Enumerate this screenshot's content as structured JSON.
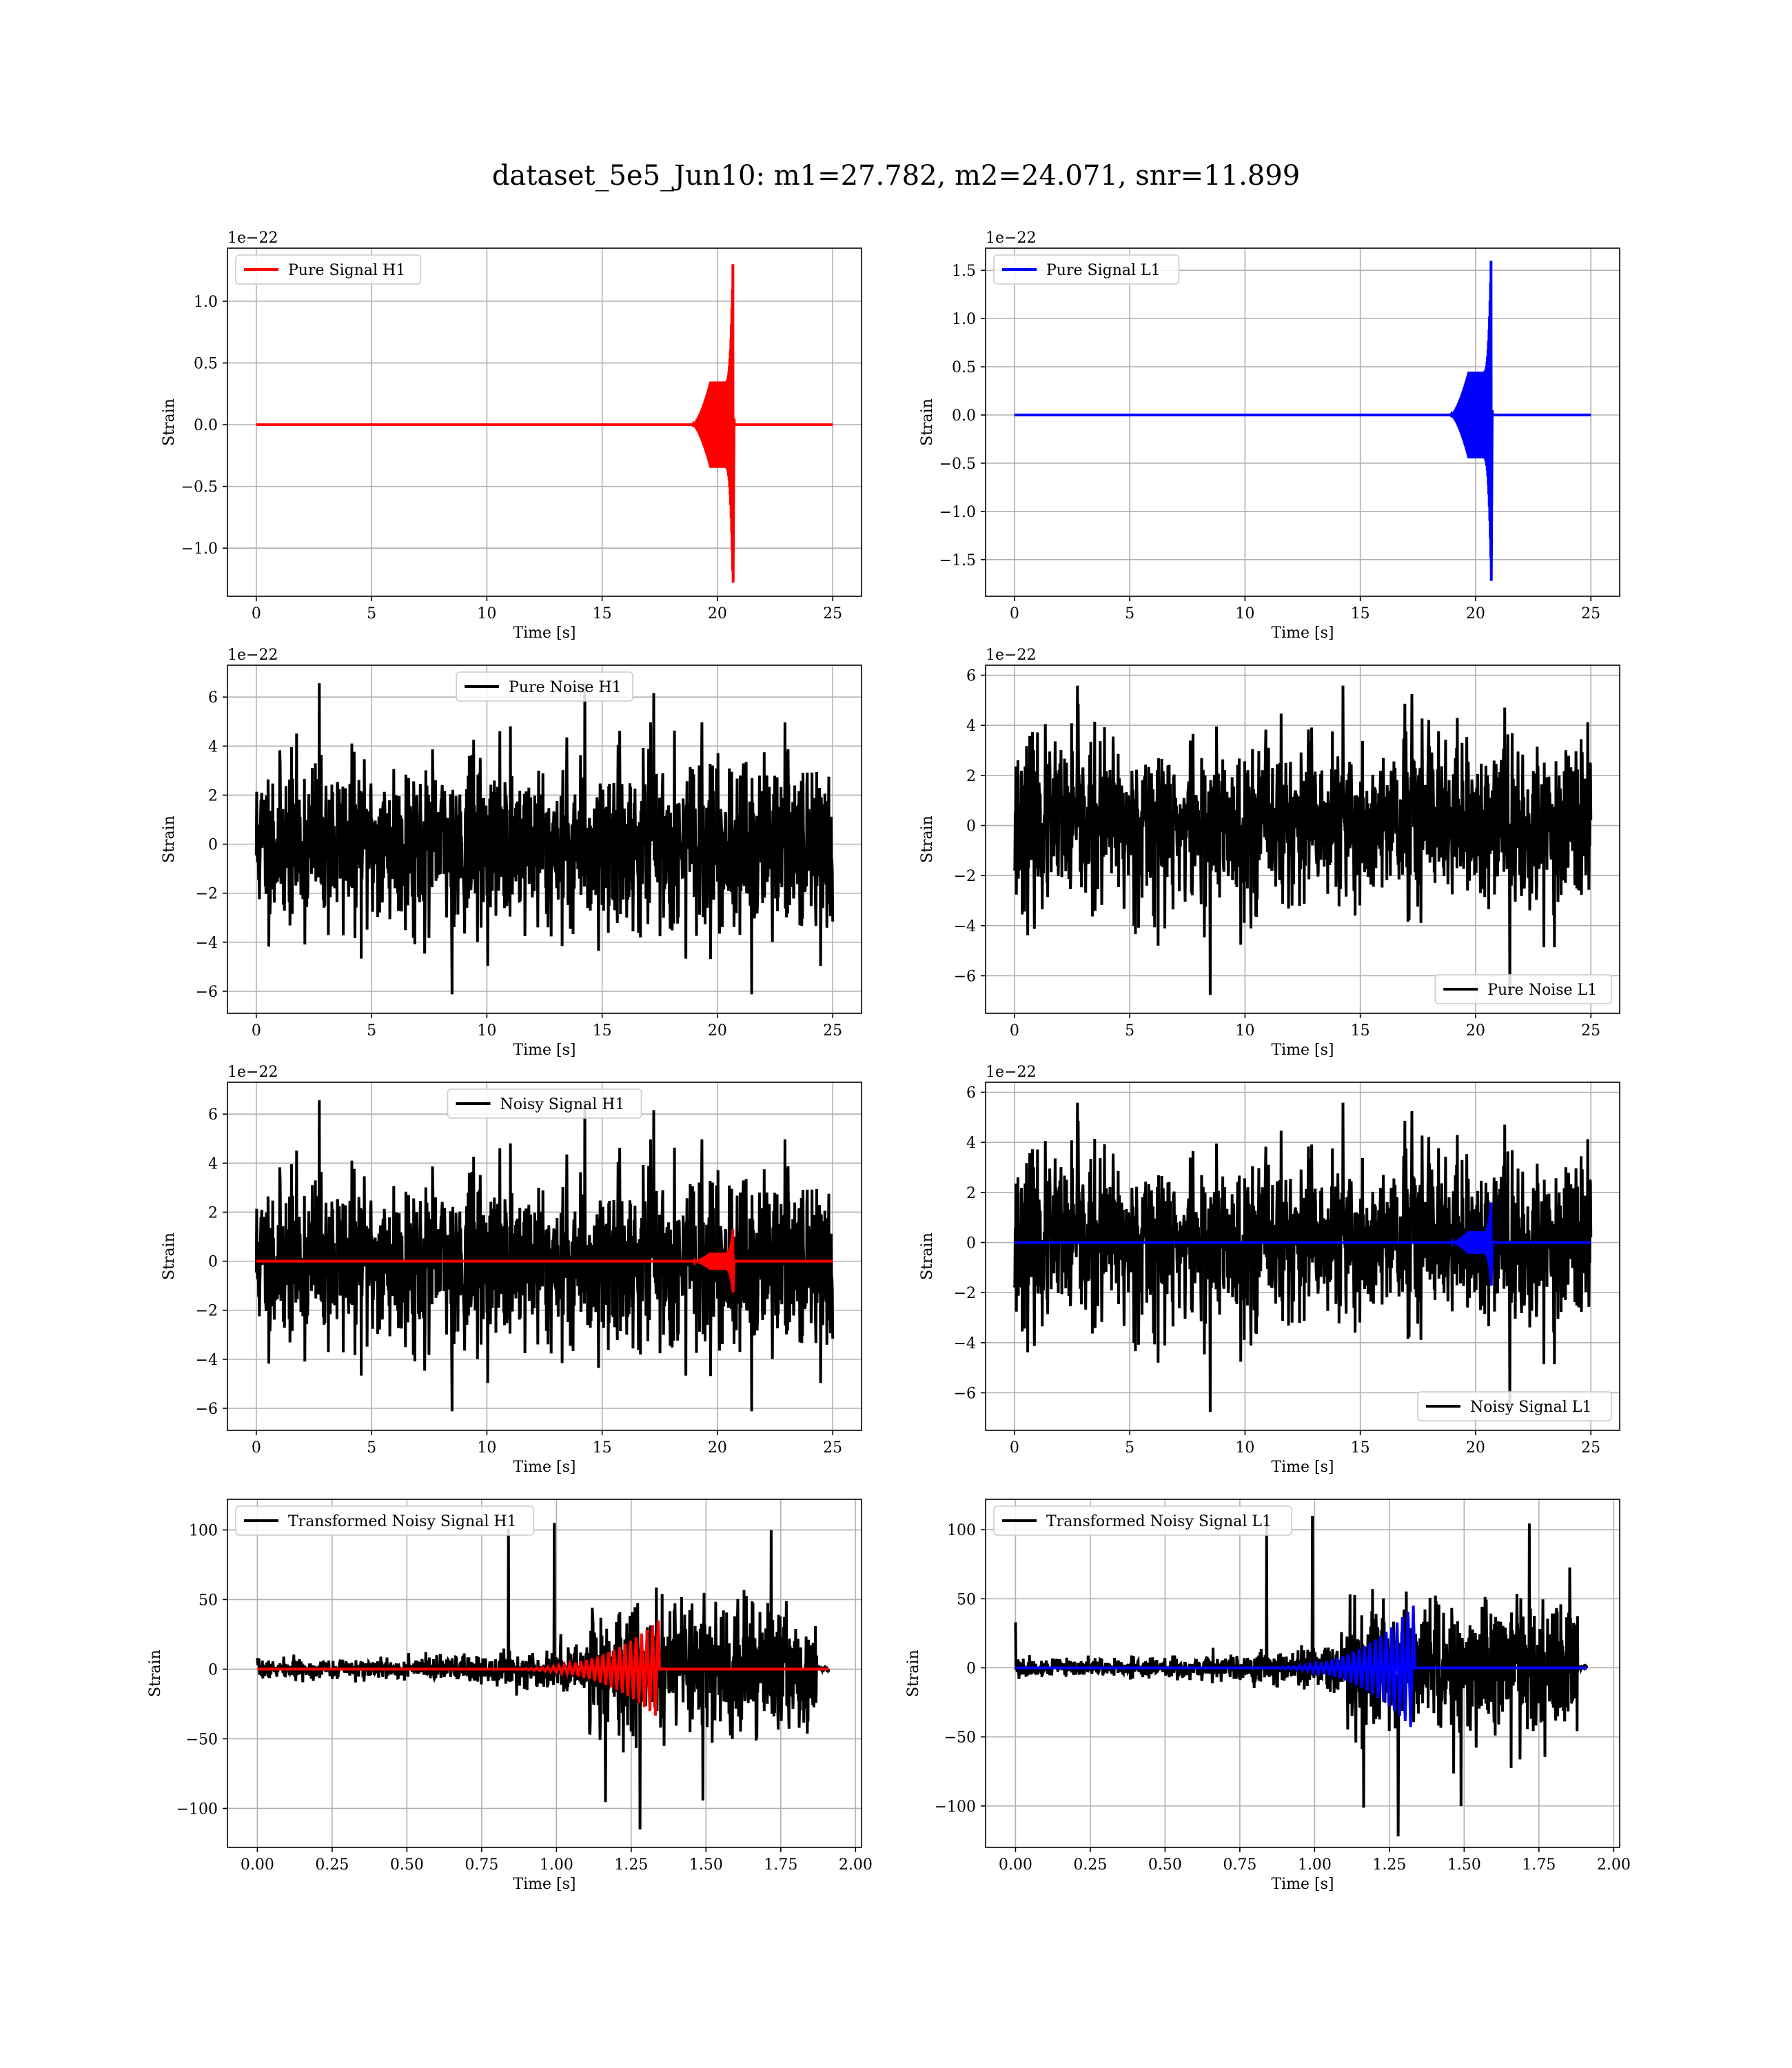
{
  "figure": {
    "title": "dataset_5e5_Jun10: m1=27.782, m2=24.071, snr=11.899"
  },
  "chart_data": [
    {
      "id": "pure-signal-h1",
      "type": "line",
      "xlabel": "Time [s]",
      "ylabel": "Strain",
      "offset_text": "1e−22",
      "xlim": [
        -1.25,
        26.25
      ],
      "ylim": [
        -1.39,
        1.43
      ],
      "xticks": [
        0,
        5,
        10,
        15,
        20,
        25
      ],
      "yticks": [
        -1.0,
        -0.5,
        0.0,
        0.5,
        1.0
      ],
      "ytick_labels": [
        "−1.0",
        "−0.5",
        "0.0",
        "0.5",
        "1.0"
      ],
      "grid": true,
      "legend": {
        "location": "upper left"
      },
      "series": [
        {
          "name": "Pure Signal H1",
          "color": "#ff0000",
          "kind": "chirp",
          "x_range": [
            0,
            25
          ],
          "start_t": 18.9,
          "peak_t": 20.67,
          "end_t": 20.72,
          "plateau_amp": 0.35,
          "peak_pos": 1.3,
          "peak_neg": -1.28
        }
      ]
    },
    {
      "id": "pure-signal-l1",
      "type": "line",
      "xlabel": "Time [s]",
      "ylabel": "Strain",
      "offset_text": "1e−22",
      "xlim": [
        -1.25,
        26.25
      ],
      "ylim": [
        -1.88,
        1.73
      ],
      "xticks": [
        0,
        5,
        10,
        15,
        20,
        25
      ],
      "yticks": [
        -1.5,
        -1.0,
        -0.5,
        0.0,
        0.5,
        1.0,
        1.5
      ],
      "ytick_labels": [
        "−1.5",
        "−1.0",
        "−0.5",
        "0.0",
        "0.5",
        "1.0",
        "1.5"
      ],
      "grid": true,
      "legend": {
        "location": "upper left"
      },
      "series": [
        {
          "name": "Pure Signal L1",
          "color": "#0000ff",
          "kind": "chirp",
          "x_range": [
            0,
            25
          ],
          "start_t": 18.9,
          "peak_t": 20.67,
          "end_t": 20.72,
          "plateau_amp": 0.45,
          "peak_pos": 1.6,
          "peak_neg": -1.72
        }
      ]
    },
    {
      "id": "pure-noise-h1",
      "type": "line",
      "xlabel": "Time [s]",
      "ylabel": "Strain",
      "offset_text": "1e−22",
      "xlim": [
        -1.25,
        26.25
      ],
      "ylim": [
        -6.9,
        7.3
      ],
      "xticks": [
        0,
        5,
        10,
        15,
        20,
        25
      ],
      "yticks": [
        -6,
        -4,
        -2,
        0,
        2,
        4,
        6
      ],
      "ytick_labels": [
        "−6",
        "−4",
        "−2",
        "0",
        "2",
        "4",
        "6"
      ],
      "grid": true,
      "legend": {
        "location": "upper center"
      },
      "series": [
        {
          "name": "Pure Noise H1",
          "color": "#000000",
          "kind": "noise",
          "x_range": [
            0,
            25
          ],
          "envelope": 4.6,
          "max": 6.7,
          "min": -6.25,
          "seed": 11
        }
      ]
    },
    {
      "id": "pure-noise-l1",
      "type": "line",
      "xlabel": "Time [s]",
      "ylabel": "Strain",
      "offset_text": "1e−22",
      "xlim": [
        -1.25,
        26.25
      ],
      "ylim": [
        -7.5,
        6.4
      ],
      "xticks": [
        0,
        5,
        10,
        15,
        20,
        25
      ],
      "yticks": [
        -6,
        -4,
        -2,
        0,
        2,
        4,
        6
      ],
      "ytick_labels": [
        "−6",
        "−4",
        "−2",
        "0",
        "2",
        "4",
        "6"
      ],
      "grid": true,
      "legend": {
        "location": "lower right"
      },
      "series": [
        {
          "name": "Pure Noise L1",
          "color": "#000000",
          "kind": "noise",
          "x_range": [
            0,
            25
          ],
          "envelope": 4.5,
          "max": 5.7,
          "min": -6.9,
          "seed": 23
        }
      ]
    },
    {
      "id": "noisy-signal-h1",
      "type": "line",
      "xlabel": "Time [s]",
      "ylabel": "Strain",
      "offset_text": "1e−22",
      "xlim": [
        -1.25,
        26.25
      ],
      "ylim": [
        -6.9,
        7.3
      ],
      "xticks": [
        0,
        5,
        10,
        15,
        20,
        25
      ],
      "yticks": [
        -6,
        -4,
        -2,
        0,
        2,
        4,
        6
      ],
      "ytick_labels": [
        "−6",
        "−4",
        "−2",
        "0",
        "2",
        "4",
        "6"
      ],
      "grid": true,
      "legend": {
        "location": "upper center"
      },
      "series": [
        {
          "name": "Noisy Signal H1",
          "color": "#000000",
          "kind": "noise",
          "x_range": [
            0,
            25
          ],
          "envelope": 4.6,
          "max": 6.7,
          "min": -6.25,
          "seed": 11
        },
        {
          "name": "",
          "color": "#ff0000",
          "kind": "chirp",
          "x_range": [
            0,
            25
          ],
          "start_t": 18.9,
          "peak_t": 20.67,
          "end_t": 20.72,
          "plateau_amp": 0.35,
          "peak_pos": 1.3,
          "peak_neg": -1.28
        }
      ]
    },
    {
      "id": "noisy-signal-l1",
      "type": "line",
      "xlabel": "Time [s]",
      "ylabel": "Strain",
      "offset_text": "1e−22",
      "xlim": [
        -1.25,
        26.25
      ],
      "ylim": [
        -7.5,
        6.4
      ],
      "xticks": [
        0,
        5,
        10,
        15,
        20,
        25
      ],
      "yticks": [
        -6,
        -4,
        -2,
        0,
        2,
        4,
        6
      ],
      "ytick_labels": [
        "−6",
        "−4",
        "−2",
        "0",
        "2",
        "4",
        "6"
      ],
      "grid": true,
      "legend": {
        "location": "lower right"
      },
      "series": [
        {
          "name": "Noisy Signal L1",
          "color": "#000000",
          "kind": "noise",
          "x_range": [
            0,
            25
          ],
          "envelope": 4.5,
          "max": 5.7,
          "min": -6.9,
          "seed": 23
        },
        {
          "name": "",
          "color": "#0000ff",
          "kind": "chirp",
          "x_range": [
            0,
            25
          ],
          "start_t": 18.9,
          "peak_t": 20.67,
          "end_t": 20.72,
          "plateau_amp": 0.45,
          "peak_pos": 1.6,
          "peak_neg": -1.72
        }
      ]
    },
    {
      "id": "transformed-noisy-signal-h1",
      "type": "line",
      "xlabel": "Time [s]",
      "ylabel": "Strain",
      "offset_text": "",
      "xlim": [
        -0.1,
        2.02
      ],
      "ylim": [
        -128,
        122
      ],
      "xticks": [
        0.0,
        0.25,
        0.5,
        0.75,
        1.0,
        1.25,
        1.5,
        1.75,
        2.0
      ],
      "xtick_labels": [
        "0.00",
        "0.25",
        "0.50",
        "0.75",
        "1.00",
        "1.25",
        "1.50",
        "1.75",
        "2.00"
      ],
      "yticks": [
        -100,
        -50,
        0,
        50,
        100
      ],
      "ytick_labels": [
        "−100",
        "−50",
        "0",
        "50",
        "100"
      ],
      "grid": true,
      "legend": {
        "location": "upper left"
      },
      "series": [
        {
          "name": "Transformed Noisy Signal H1",
          "color": "#000000",
          "kind": "tnoise",
          "x_range": [
            0,
            1.91
          ],
          "env_before": 8,
          "ramp_start": 0.3,
          "ramp_end": 1.1,
          "jump_t": 1.11,
          "env_after": 55,
          "end_t": 1.87,
          "max": 105,
          "min": -115,
          "seed": 7
        },
        {
          "name": "",
          "color": "#ff0000",
          "kind": "tchirp",
          "x_range": [
            0,
            1.91
          ],
          "start_t": 0.75,
          "peak_t": 1.34,
          "amp": 35
        }
      ]
    },
    {
      "id": "transformed-noisy-signal-l1",
      "type": "line",
      "xlabel": "Time [s]",
      "ylabel": "Strain",
      "offset_text": "",
      "xlim": [
        -0.1,
        2.02
      ],
      "ylim": [
        -130,
        122
      ],
      "xticks": [
        0.0,
        0.25,
        0.5,
        0.75,
        1.0,
        1.25,
        1.5,
        1.75,
        2.0
      ],
      "xtick_labels": [
        "0.00",
        "0.25",
        "0.50",
        "0.75",
        "1.00",
        "1.25",
        "1.50",
        "1.75",
        "2.00"
      ],
      "yticks": [
        -100,
        -50,
        0,
        50,
        100
      ],
      "ytick_labels": [
        "−100",
        "−50",
        "0",
        "50",
        "100"
      ],
      "grid": true,
      "legend": {
        "location": "upper left"
      },
      "series": [
        {
          "name": "Transformed Noisy Signal L1",
          "color": "#000000",
          "kind": "tnoise",
          "x_range": [
            0,
            1.91
          ],
          "env_before": 8,
          "ramp_start": 0.3,
          "ramp_end": 1.1,
          "jump_t": 1.11,
          "env_after": 55,
          "end_t": 1.88,
          "max": 110,
          "min": -122,
          "seed": 19
        },
        {
          "name": "",
          "color": "#0000ff",
          "kind": "tchirp",
          "x_range": [
            0,
            1.91
          ],
          "start_t": 0.75,
          "peak_t": 1.33,
          "amp": 45
        }
      ]
    }
  ]
}
